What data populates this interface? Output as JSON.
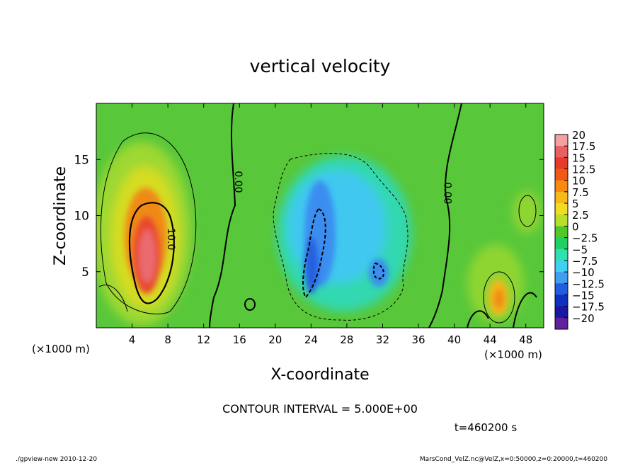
{
  "chart_data": {
    "type": "heatmap",
    "title": "vertical velocity",
    "xlabel": "X-coordinate",
    "ylabel": "Z-coordinate",
    "x_unit_left": "(×1000 m)",
    "x_unit_right": "(×1000 m)",
    "x_range": [
      0,
      50
    ],
    "y_range": [
      0,
      20
    ],
    "x_ticks": [
      4,
      8,
      12,
      16,
      20,
      24,
      28,
      32,
      36,
      40,
      44,
      48
    ],
    "y_ticks": [
      5,
      10,
      15
    ],
    "colorbar": {
      "labels": [
        "20",
        "17.5",
        "15",
        "12.5",
        "10",
        "7.5",
        "5",
        "2.5",
        "0",
        "−2.5",
        "−5",
        "−7.5",
        "−10",
        "−12.5",
        "−15",
        "−17.5",
        "−20"
      ],
      "colors": [
        "#f5a0a0",
        "#e86060",
        "#e83a28",
        "#f05a14",
        "#f78a10",
        "#f7b81a",
        "#f0dc20",
        "#b8e028",
        "#50c828",
        "#20d060",
        "#30e0b0",
        "#40d0f0",
        "#40a0f0",
        "#2060e0",
        "#1030c0",
        "#1818a0",
        "#6020a0"
      ]
    },
    "contour_labels": [
      {
        "text": "10.0",
        "x": 8.0,
        "y": 7.9
      },
      {
        "text": "0.00",
        "x": 15.5,
        "y": 13.0
      },
      {
        "text": "0.00",
        "x": 38.9,
        "y": 12.0
      }
    ],
    "features": [
      {
        "sign": "positive",
        "center_x": 5.7,
        "center_z": 7.0,
        "peak": 17.5
      },
      {
        "sign": "negative",
        "center_x": 24.5,
        "center_z": 8.0,
        "peak": -12.5
      },
      {
        "sign": "negative",
        "center_x": 30.5,
        "center_z": 5.0,
        "peak": -10
      },
      {
        "sign": "positive",
        "center_x": 44.7,
        "center_z": 2.8,
        "peak": 7.5
      },
      {
        "sign": "positive",
        "center_x": 47.0,
        "center_z": 10.8,
        "peak": 5
      }
    ]
  },
  "annotations": {
    "contour_interval": "CONTOUR INTERVAL = 5.000E+00",
    "time": "t=460200 s",
    "footer_left": "./gpview-new  2010-12-20",
    "footer_right": "MarsCond_VelZ.nc@VelZ,x=0:50000,z=0:20000,t=460200"
  }
}
